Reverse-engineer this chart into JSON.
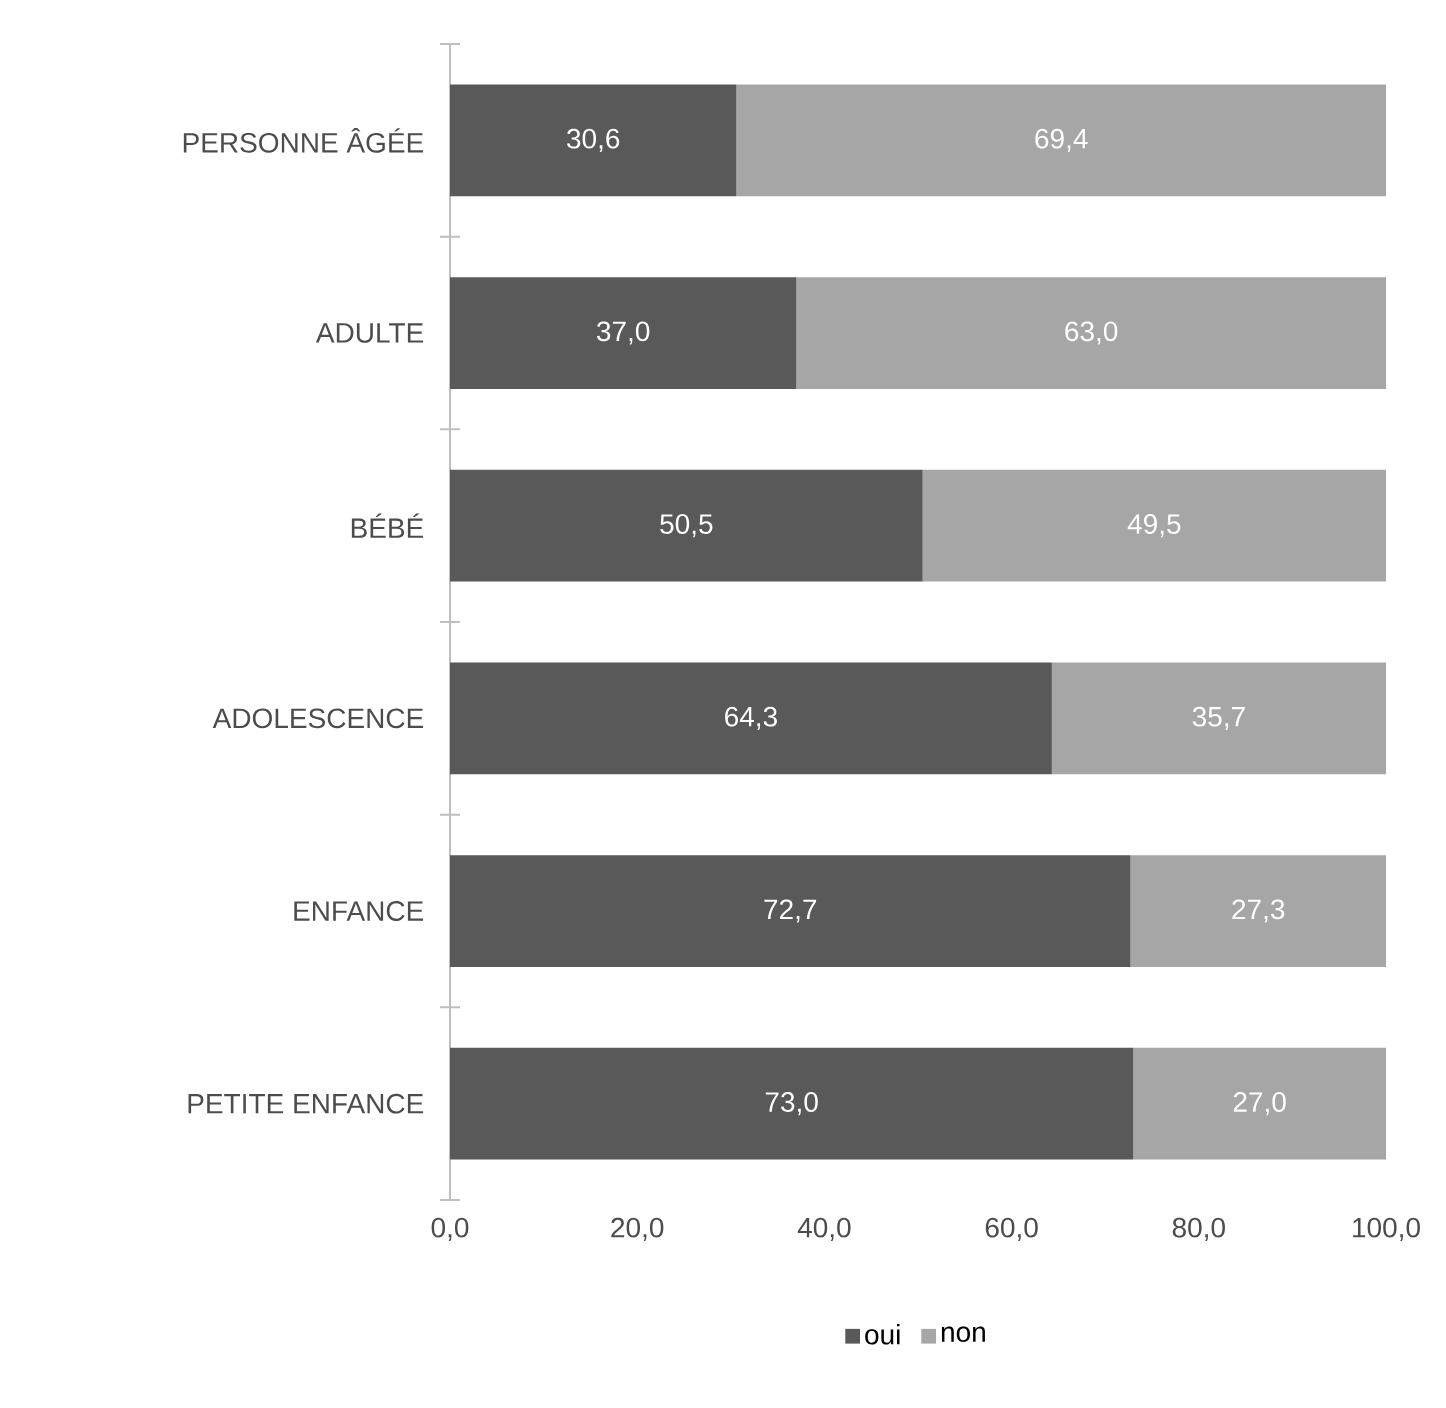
{
  "chart_data": {
    "type": "bar",
    "orientation": "horizontal",
    "stacked": true,
    "categories": [
      "PERSONNE ÂGÉE",
      "ADULTE",
      "BÉBÉ",
      "ADOLESCENCE",
      "ENFANCE",
      "PETITE ENFANCE"
    ],
    "series": [
      {
        "name": "oui",
        "color": "#595959",
        "values": [
          30.6,
          37.0,
          50.5,
          64.3,
          72.7,
          73.0
        ],
        "value_labels": [
          "30,6",
          "37,0",
          "50,5",
          "64,3",
          "72,7",
          "73,0"
        ]
      },
      {
        "name": "non",
        "color": "#a6a6a6",
        "values": [
          69.4,
          63.0,
          49.5,
          35.7,
          27.3,
          27.0
        ],
        "value_labels": [
          "69,4",
          "63,0",
          "49,5",
          "35,7",
          "27,3",
          "27,0"
        ]
      }
    ],
    "xlim": [
      0,
      100
    ],
    "xticks": [
      {
        "value": 0,
        "label": "0,0"
      },
      {
        "value": 20,
        "label": "20,0"
      },
      {
        "value": 40,
        "label": "40,0"
      },
      {
        "value": 60,
        "label": "60,0"
      },
      {
        "value": 80,
        "label": "80,0"
      },
      {
        "value": 100,
        "label": "100,0"
      }
    ],
    "legend": "bottom"
  }
}
